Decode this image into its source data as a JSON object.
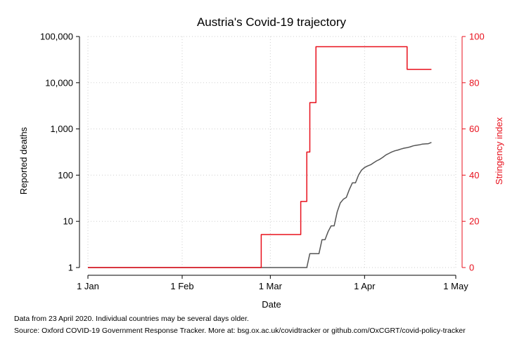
{
  "chart_data": {
    "type": "line",
    "title": "Austria's Covid-19 trajectory",
    "xlabel": "Date",
    "ylabel_left": "Reported deaths",
    "ylabel_right": "Stringency index",
    "left_axis": {
      "scale": "log",
      "ylim": [
        1,
        100000
      ],
      "ticks": [
        1,
        10,
        100,
        1000,
        10000,
        100000
      ],
      "tick_labels": [
        "1",
        "10",
        "100",
        "1,000",
        "10,000",
        "100,000"
      ]
    },
    "right_axis": {
      "scale": "linear",
      "ylim": [
        0,
        100
      ],
      "ticks": [
        0,
        20,
        40,
        60,
        80,
        100
      ],
      "tick_labels": [
        "0",
        "20",
        "40",
        "60",
        "80",
        "100"
      ],
      "color": "#e8101c"
    },
    "x_axis": {
      "range": [
        "2020-01-01",
        "2020-05-01"
      ],
      "ticks": [
        "2020-01-01",
        "2020-02-01",
        "2020-03-01",
        "2020-04-01",
        "2020-05-01"
      ],
      "tick_labels": [
        "1 Jan",
        "1 Feb",
        "1 Mar",
        "1 Apr",
        "1 May"
      ]
    },
    "grid": true,
    "series": [
      {
        "axis": "left",
        "color": "#555555",
        "x": [
          "2020-01-01",
          "2020-03-13",
          "2020-03-14",
          "2020-03-17",
          "2020-03-18",
          "2020-03-19",
          "2020-03-20",
          "2020-03-21",
          "2020-03-22",
          "2020-03-23",
          "2020-03-24",
          "2020-03-25",
          "2020-03-26",
          "2020-03-27",
          "2020-03-28",
          "2020-03-29",
          "2020-03-30",
          "2020-03-31",
          "2020-04-01",
          "2020-04-02",
          "2020-04-03",
          "2020-04-04",
          "2020-04-05",
          "2020-04-06",
          "2020-04-07",
          "2020-04-08",
          "2020-04-09",
          "2020-04-10",
          "2020-04-11",
          "2020-04-12",
          "2020-04-13",
          "2020-04-14",
          "2020-04-15",
          "2020-04-16",
          "2020-04-17",
          "2020-04-18",
          "2020-04-19",
          "2020-04-20",
          "2020-04-21",
          "2020-04-22",
          "2020-04-23"
        ],
        "values": [
          1,
          1,
          2,
          2,
          4,
          4,
          6,
          8,
          8,
          16,
          25,
          30,
          33,
          49,
          68,
          68,
          100,
          128,
          146,
          158,
          168,
          186,
          204,
          220,
          243,
          273,
          295,
          319,
          337,
          350,
          368,
          384,
          393,
          410,
          431,
          443,
          452,
          470,
          475,
          479,
          510
        ]
      },
      {
        "axis": "right",
        "color": "#e8101c",
        "x": [
          "2020-01-01",
          "2020-02-26",
          "2020-02-27",
          "2020-03-10",
          "2020-03-11",
          "2020-03-12",
          "2020-03-13",
          "2020-03-14",
          "2020-03-15",
          "2020-03-16",
          "2020-04-14",
          "2020-04-15",
          "2020-04-23"
        ],
        "values": [
          0,
          0,
          14.3,
          14.3,
          28.6,
          28.6,
          50,
          71.4,
          71.4,
          95.6,
          95.6,
          85.8,
          85.8
        ]
      }
    ],
    "notes": [
      "Data from 23 April 2020. Individual countries may be several days older.",
      "Source: Oxford COVID-19 Government Response Tracker. More at: bsg.ox.ac.uk/covidtracker or github.com/OxCGRT/covid-policy-tracker"
    ]
  }
}
